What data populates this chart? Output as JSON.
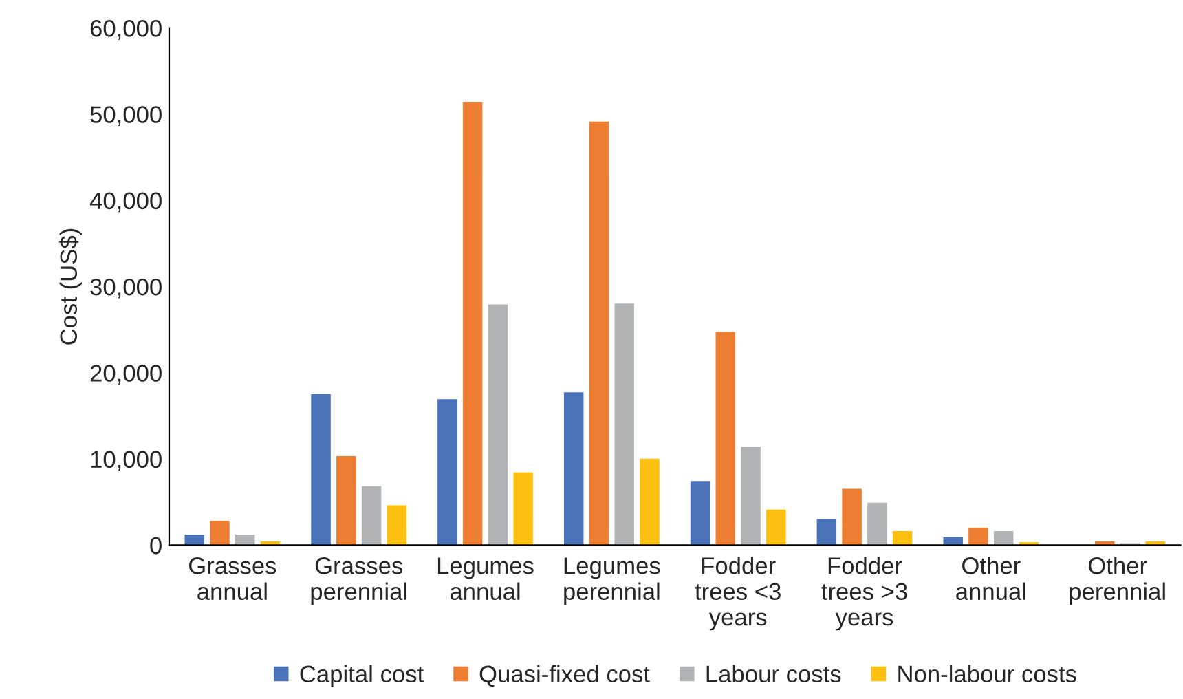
{
  "chart_data": {
    "type": "bar",
    "ylabel": "Cost (US$)",
    "categories": [
      "Grasses\nannual",
      "Grasses\nperennial",
      "Legumes\nannual",
      "Legumes\nperennial",
      "Fodder\ntrees <3\nyears",
      "Fodder\ntrees >3\nyears",
      "Other\nannual",
      "Other\nperennial"
    ],
    "series": [
      {
        "name": "Capital cost",
        "color": "#4a72b8",
        "values": [
          1300,
          17600,
          17000,
          17800,
          7500,
          3100,
          1000,
          100
        ]
      },
      {
        "name": "Quasi-fixed cost",
        "color": "#ed7d31",
        "values": [
          2900,
          10400,
          51500,
          49200,
          24800,
          6600,
          2100,
          500
        ]
      },
      {
        "name": "Labour costs",
        "color": "#b2b3b4",
        "values": [
          1300,
          6900,
          28000,
          28100,
          11500,
          5000,
          1700,
          300
        ]
      },
      {
        "name": "Non-labour costs",
        "color": "#fdc010",
        "values": [
          500,
          4700,
          8500,
          10100,
          4200,
          1700,
          400,
          500
        ]
      }
    ],
    "ylim": [
      0,
      60000
    ],
    "yticks": [
      {
        "value": 0,
        "label": "0"
      },
      {
        "value": 10000,
        "label": "10,000"
      },
      {
        "value": 20000,
        "label": "20,000"
      },
      {
        "value": 30000,
        "label": "30,000"
      },
      {
        "value": 40000,
        "label": "40,000"
      },
      {
        "value": 50000,
        "label": "50,000"
      },
      {
        "value": 60000,
        "label": "60,000"
      }
    ],
    "grid": false,
    "legend": "bottom"
  }
}
